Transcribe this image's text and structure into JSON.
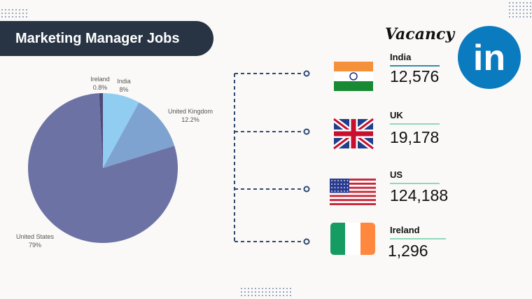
{
  "header": {
    "title": "Marketing Manager Jobs"
  },
  "chart_data": {
    "type": "pie",
    "categories": [
      "India",
      "United Kingdom",
      "United States",
      "Ireland"
    ],
    "values": [
      8,
      12.2,
      79,
      0.8
    ],
    "value_labels": [
      "8%",
      "12.2%",
      "79%",
      "0.8%"
    ],
    "colors": [
      "#91cdf0",
      "#7fa3d1",
      "#6d72a4",
      "#4d4878"
    ]
  },
  "vacancy": {
    "title": "Vacancy",
    "rows": [
      {
        "country": "India",
        "count": "12,576"
      },
      {
        "country": "UK",
        "count": "19,178"
      },
      {
        "country": "US",
        "count": "124,188"
      },
      {
        "country": "Ireland",
        "count": "1,296"
      }
    ]
  },
  "logo": {
    "text": "in"
  }
}
